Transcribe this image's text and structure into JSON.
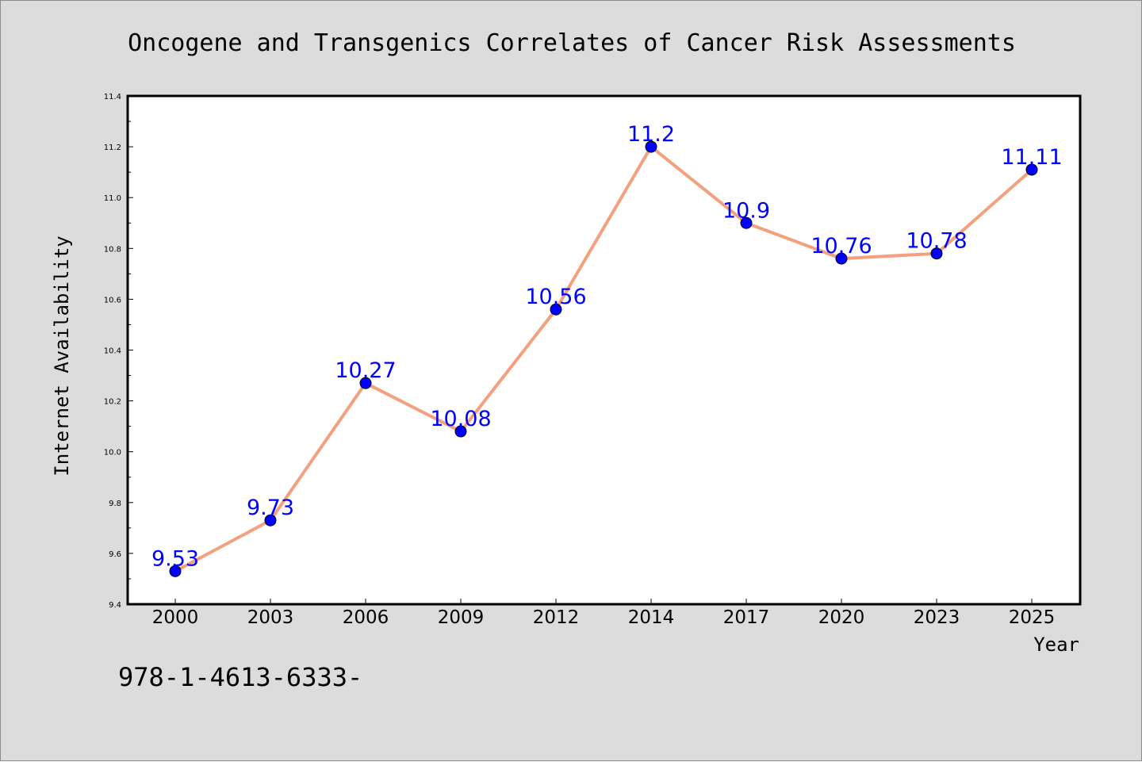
{
  "chart_data": {
    "type": "line",
    "title": "Oncogene and Transgenics Correlates of Cancer Risk Assessments",
    "xlabel": "Year",
    "ylabel": "Internet Availability",
    "categories": [
      "2000",
      "2003",
      "2006",
      "2009",
      "2012",
      "2014",
      "2017",
      "2020",
      "2023",
      "2025"
    ],
    "series": [
      {
        "values": [
          9.53,
          9.73,
          10.27,
          10.08,
          10.56,
          11.2,
          10.9,
          10.76,
          10.78,
          11.11
        ],
        "labels": [
          "9.53",
          "9.73",
          "10.27",
          "10.08",
          "10.56",
          "11.2",
          "10.9",
          "10.76",
          "10.78",
          "11.11"
        ]
      }
    ],
    "ylim": [
      9.4,
      11.4
    ],
    "yticks": [
      "9.4",
      "9.6",
      "9.8",
      "10.0",
      "10.2",
      "10.4",
      "10.6",
      "10.8",
      "11.0",
      "11.2",
      "11.4"
    ],
    "grid": false,
    "legend": "none"
  },
  "footer_text": "978-1-4613-6333-",
  "colors": {
    "background": "#dcdcdc",
    "plot_area": "#ffffff",
    "line": "#f4a07f",
    "marker": "#0000ff",
    "value_label": "#0000ff"
  }
}
